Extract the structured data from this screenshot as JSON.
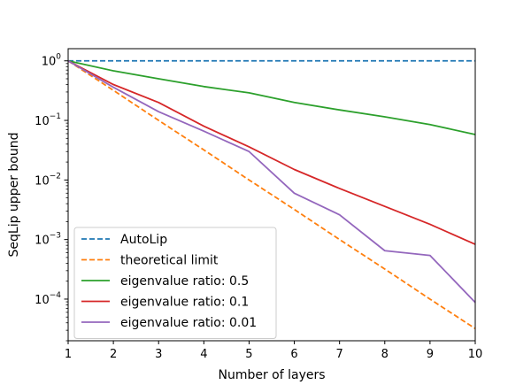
{
  "chart_data": {
    "type": "line",
    "title": "",
    "xlabel": "Number of layers",
    "ylabel": "SeqLip upper bound",
    "xlim": [
      1,
      10
    ],
    "ylim": [
      2e-05,
      1.6
    ],
    "yscale": "log",
    "grid": false,
    "legend_position": "lower-left",
    "x": [
      1,
      2,
      3,
      4,
      5,
      6,
      7,
      8,
      9,
      10
    ],
    "x_ticks": [
      "1",
      "2",
      "3",
      "4",
      "5",
      "6",
      "7",
      "8",
      "9",
      "10"
    ],
    "y_ticks": [
      {
        "value": 1,
        "base": "10",
        "exp": "0"
      },
      {
        "value": 0.1,
        "base": "10",
        "exp": "−1"
      },
      {
        "value": 0.01,
        "base": "10",
        "exp": "−2"
      },
      {
        "value": 0.001,
        "base": "10",
        "exp": "−3"
      },
      {
        "value": 0.0001,
        "base": "10",
        "exp": "−4"
      }
    ],
    "series": [
      {
        "name": "AutoLip",
        "color": "#1f77b4",
        "dashed": true,
        "values": [
          1,
          1,
          1,
          1,
          1,
          1,
          1,
          1,
          1,
          1
        ]
      },
      {
        "name": "theoretical limit",
        "color": "#ff7f0e",
        "dashed": true,
        "values": [
          1,
          0.32,
          0.1,
          0.032,
          0.01,
          0.0032,
          0.001,
          0.00032,
          0.0001,
          3.2e-05
        ]
      },
      {
        "name": "eigenvalue ratio: 0.5",
        "color": "#2ca02c",
        "dashed": false,
        "values": [
          1,
          0.68,
          0.5,
          0.37,
          0.29,
          0.2,
          0.15,
          0.115,
          0.085,
          0.058
        ]
      },
      {
        "name": "eigenvalue ratio: 0.1",
        "color": "#d62728",
        "dashed": false,
        "values": [
          1,
          0.4,
          0.2,
          0.08,
          0.036,
          0.015,
          0.0072,
          0.0036,
          0.0018,
          0.00083
        ]
      },
      {
        "name": "eigenvalue ratio: 0.01",
        "color": "#9467bd",
        "dashed": false,
        "values": [
          1,
          0.36,
          0.14,
          0.066,
          0.03,
          0.006,
          0.0026,
          0.00065,
          0.00054,
          8.8e-05
        ]
      }
    ]
  }
}
